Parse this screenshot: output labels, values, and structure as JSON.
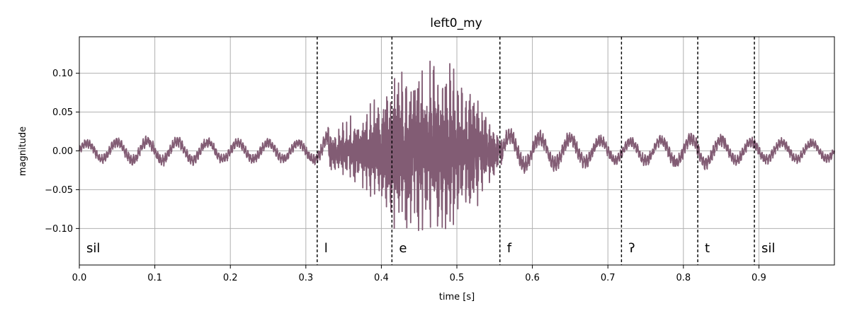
{
  "chart_data": {
    "type": "line",
    "title": "left0_my",
    "xlabel": "time [s]",
    "ylabel": "magnitude",
    "xlim": [
      0.0,
      1.0
    ],
    "ylim": [
      -0.147,
      0.147
    ],
    "x_ticks": [
      0.0,
      0.1,
      0.2,
      0.3,
      0.4,
      0.5,
      0.6,
      0.7,
      0.8,
      0.9
    ],
    "x_tick_labels": [
      "0.0",
      "0.1",
      "0.2",
      "0.3",
      "0.4",
      "0.5",
      "0.6",
      "0.7",
      "0.8",
      "0.9"
    ],
    "y_ticks": [
      -0.1,
      -0.05,
      0.0,
      0.05,
      0.1
    ],
    "y_tick_labels": [
      "−0.10",
      "−0.05",
      "0.00",
      "0.05",
      "0.10"
    ],
    "grid": true,
    "line_color": "#825c74",
    "segments": [
      {
        "label": "sil",
        "start": 0.0
      },
      {
        "label": "l",
        "start": 0.315
      },
      {
        "label": "e",
        "start": 0.414
      },
      {
        "label": "f",
        "start": 0.557
      },
      {
        "label": "ʔ",
        "start": 0.718
      },
      {
        "label": "t",
        "start": 0.819
      },
      {
        "label": "sil",
        "start": 0.894
      }
    ],
    "envelope": {
      "t": [
        0.0,
        0.05,
        0.1,
        0.2,
        0.3,
        0.315,
        0.35,
        0.38,
        0.414,
        0.45,
        0.48,
        0.52,
        0.557,
        0.6,
        0.65,
        0.718,
        0.75,
        0.819,
        0.894,
        0.95,
        1.0
      ],
      "amp": [
        0.012,
        0.014,
        0.016,
        0.013,
        0.013,
        0.015,
        0.04,
        0.06,
        0.11,
        0.12,
        0.125,
        0.09,
        0.025,
        0.022,
        0.02,
        0.014,
        0.016,
        0.02,
        0.014,
        0.013,
        0.012
      ]
    }
  }
}
